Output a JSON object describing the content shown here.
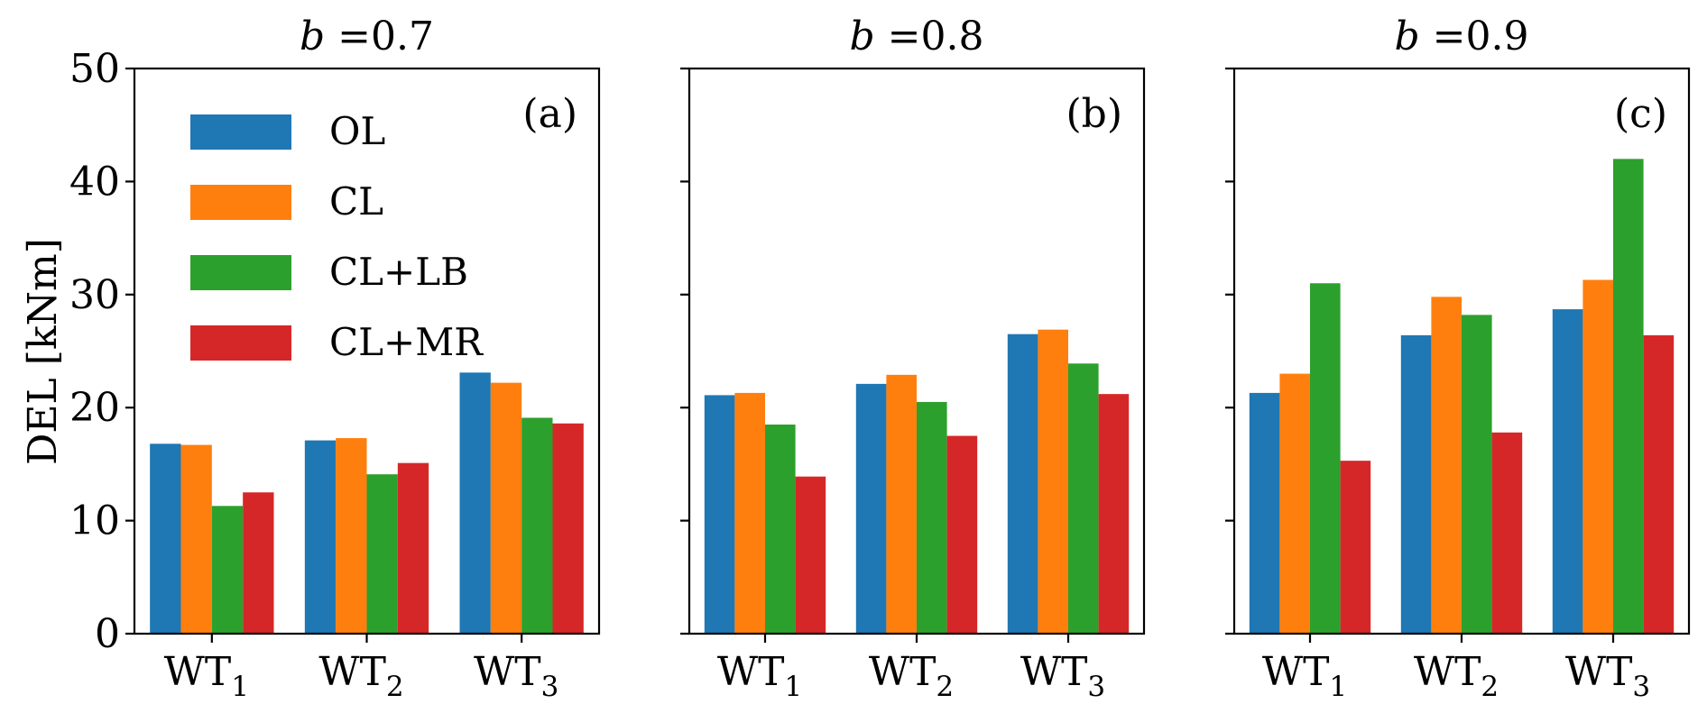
{
  "chart_data": {
    "type": "bar",
    "ylabel": "DEL [kNm]",
    "ylim": [
      0,
      50
    ],
    "yticks": [
      0,
      10,
      20,
      30,
      40,
      50
    ],
    "categories": [
      "WT1",
      "WT2",
      "WT3"
    ],
    "category_subscripts": [
      "1",
      "2",
      "3"
    ],
    "category_base": "WT",
    "legend": {
      "placement": "upper-left of first panel",
      "entries": [
        {
          "name": "OL",
          "color": "#1f77b4"
        },
        {
          "name": "CL",
          "color": "#ff7f0e"
        },
        {
          "name": "CL+LB",
          "color": "#2ca02c"
        },
        {
          "name": "CL+MR",
          "color": "#d62728"
        }
      ]
    },
    "panels": [
      {
        "title_var": "b",
        "title_value": "=0.7",
        "tag": "(a)",
        "series": [
          {
            "name": "OL",
            "values": [
              16.8,
              17.1,
              23.1
            ]
          },
          {
            "name": "CL",
            "values": [
              16.7,
              17.3,
              22.2
            ]
          },
          {
            "name": "CL+LB",
            "values": [
              11.3,
              14.1,
              19.1
            ]
          },
          {
            "name": "CL+MR",
            "values": [
              12.5,
              15.1,
              18.6
            ]
          }
        ]
      },
      {
        "title_var": "b",
        "title_value": "=0.8",
        "tag": "(b)",
        "series": [
          {
            "name": "OL",
            "values": [
              21.1,
              22.1,
              26.5
            ]
          },
          {
            "name": "CL",
            "values": [
              21.3,
              22.9,
              26.9
            ]
          },
          {
            "name": "CL+LB",
            "values": [
              18.5,
              20.5,
              23.9
            ]
          },
          {
            "name": "CL+MR",
            "values": [
              13.9,
              17.5,
              21.2
            ]
          }
        ]
      },
      {
        "title_var": "b",
        "title_value": "=0.9",
        "tag": "(c)",
        "series": [
          {
            "name": "OL",
            "values": [
              21.3,
              26.4,
              28.7
            ]
          },
          {
            "name": "CL",
            "values": [
              23.0,
              29.8,
              31.3
            ]
          },
          {
            "name": "CL+LB",
            "values": [
              31.0,
              28.2,
              42.0
            ]
          },
          {
            "name": "CL+MR",
            "values": [
              15.3,
              17.8,
              26.4
            ]
          }
        ]
      }
    ]
  }
}
